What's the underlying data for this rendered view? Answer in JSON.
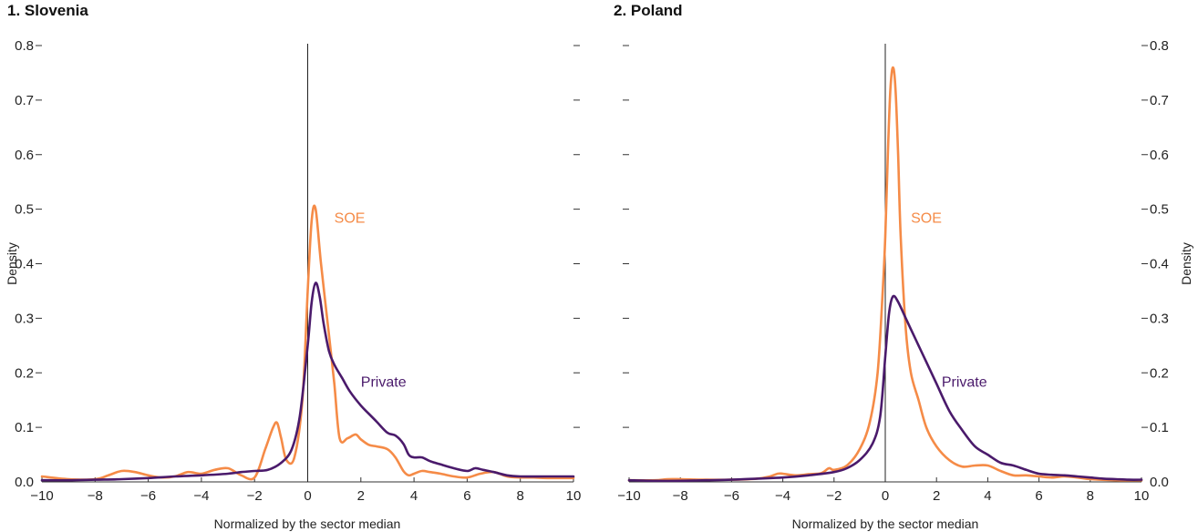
{
  "colors": {
    "soe": "#f58b47",
    "private": "#4a1a6b",
    "axis": "#333333"
  },
  "chart_data": [
    {
      "type": "line",
      "title": "1. Slovenia",
      "xlabel": "Normalized by the sector median",
      "ylabel": "Density",
      "ylabel_side": "left",
      "xlim": [
        -10,
        10
      ],
      "ylim": [
        0,
        0.8
      ],
      "xticks": [
        "−10",
        "−8",
        "−6",
        "−4",
        "−2",
        "0",
        "2",
        "4",
        "6",
        "8",
        "10"
      ],
      "yticks": [
        "0.0",
        "0.1",
        "0.2",
        "0.3",
        "0.4",
        "0.5",
        "0.6",
        "0.7",
        "0.8"
      ],
      "ytick_labels_side": "left",
      "vline_x": 0,
      "series": [
        {
          "name": "SOE",
          "color_key": "soe",
          "label_at": [
            1.0,
            0.5
          ],
          "x": [
            -10,
            -9,
            -8,
            -7.5,
            -7,
            -6.5,
            -6,
            -5.5,
            -5,
            -4.5,
            -4,
            -3.5,
            -3,
            -2.5,
            -2,
            -1.6,
            -1.3,
            -1.15,
            -1.0,
            -0.8,
            -0.5,
            -0.2,
            0,
            0.15,
            0.3,
            0.5,
            0.8,
            1.0,
            1.2,
            1.5,
            1.8,
            2.0,
            2.3,
            2.6,
            3.0,
            3.3,
            3.6,
            3.8,
            4.0,
            4.3,
            4.6,
            5.0,
            5.5,
            6.0,
            6.5,
            7.0,
            7.5,
            8.0,
            8.5,
            9.0,
            10
          ],
          "y": [
            0.01,
            0.005,
            0.005,
            0.012,
            0.02,
            0.018,
            0.012,
            0.008,
            0.01,
            0.018,
            0.015,
            0.022,
            0.025,
            0.012,
            0.008,
            0.06,
            0.1,
            0.108,
            0.08,
            0.04,
            0.045,
            0.15,
            0.35,
            0.48,
            0.5,
            0.4,
            0.27,
            0.18,
            0.08,
            0.08,
            0.087,
            0.078,
            0.068,
            0.065,
            0.06,
            0.045,
            0.02,
            0.012,
            0.015,
            0.02,
            0.018,
            0.015,
            0.01,
            0.008,
            0.015,
            0.018,
            0.01,
            0.008,
            0.008,
            0.007,
            0.007
          ]
        },
        {
          "name": "Private",
          "color_key": "private",
          "label_at": [
            2.0,
            0.2
          ],
          "x": [
            -10,
            -9,
            -8,
            -7,
            -6,
            -5,
            -4,
            -3,
            -2.5,
            -2,
            -1.5,
            -1.0,
            -0.6,
            -0.3,
            0,
            0.15,
            0.3,
            0.45,
            0.6,
            0.8,
            1.0,
            1.3,
            1.6,
            2.0,
            2.3,
            2.6,
            3.0,
            3.3,
            3.6,
            3.8,
            4.0,
            4.3,
            4.6,
            5.0,
            5.5,
            6.0,
            6.3,
            6.6,
            7.0,
            7.5,
            8.0,
            9.0,
            10
          ],
          "y": [
            0.003,
            0.003,
            0.004,
            0.005,
            0.007,
            0.01,
            0.012,
            0.015,
            0.018,
            0.02,
            0.022,
            0.035,
            0.06,
            0.12,
            0.25,
            0.33,
            0.365,
            0.34,
            0.29,
            0.24,
            0.215,
            0.19,
            0.165,
            0.14,
            0.125,
            0.11,
            0.09,
            0.085,
            0.07,
            0.05,
            0.045,
            0.045,
            0.038,
            0.032,
            0.025,
            0.02,
            0.025,
            0.022,
            0.018,
            0.012,
            0.01,
            0.01,
            0.01
          ]
        }
      ]
    },
    {
      "type": "line",
      "title": "2. Poland",
      "xlabel": "Normalized by the sector median",
      "ylabel": "Density",
      "ylabel_side": "right",
      "xlim": [
        -10,
        10
      ],
      "ylim": [
        0,
        0.8
      ],
      "xticks": [
        "−10",
        "−8",
        "−6",
        "−4",
        "−2",
        "0",
        "2",
        "4",
        "6",
        "8",
        "10"
      ],
      "yticks": [
        "0.0",
        "0.1",
        "0.2",
        "0.3",
        "0.4",
        "0.5",
        "0.6",
        "0.7",
        "0.8"
      ],
      "ytick_labels_side": "right",
      "vline_x": 0,
      "series": [
        {
          "name": "SOE",
          "color_key": "soe",
          "label_at": [
            1.0,
            0.5
          ],
          "x": [
            -10,
            -9,
            -8.5,
            -8,
            -7,
            -6,
            -5,
            -4.5,
            -4.2,
            -4.0,
            -3.5,
            -3.0,
            -2.5,
            -2.2,
            -2.0,
            -1.5,
            -1.0,
            -0.6,
            -0.3,
            -0.1,
            0,
            0.1,
            0.2,
            0.3,
            0.4,
            0.5,
            0.6,
            0.8,
            1.0,
            1.3,
            1.6,
            2.0,
            2.5,
            3.0,
            3.5,
            4.0,
            4.5,
            5.0,
            5.5,
            6.0,
            6.5,
            7.0,
            7.5,
            8.0,
            9.0,
            10
          ],
          "y": [
            0.003,
            0.003,
            0.005,
            0.005,
            0.004,
            0.004,
            0.006,
            0.01,
            0.015,
            0.015,
            0.012,
            0.014,
            0.016,
            0.025,
            0.022,
            0.03,
            0.06,
            0.11,
            0.2,
            0.35,
            0.45,
            0.6,
            0.72,
            0.76,
            0.72,
            0.6,
            0.45,
            0.28,
            0.2,
            0.15,
            0.1,
            0.065,
            0.04,
            0.028,
            0.03,
            0.03,
            0.02,
            0.012,
            0.012,
            0.01,
            0.008,
            0.01,
            0.008,
            0.005,
            0.003,
            0.003
          ]
        },
        {
          "name": "Private",
          "color_key": "private",
          "label_at": [
            2.2,
            0.2
          ],
          "x": [
            -10,
            -9,
            -8,
            -7,
            -6,
            -5,
            -4,
            -3,
            -2,
            -1.5,
            -1.0,
            -0.5,
            -0.2,
            0,
            0.15,
            0.3,
            0.5,
            0.8,
            1.0,
            1.3,
            1.6,
            2.0,
            2.5,
            3.0,
            3.5,
            4.0,
            4.5,
            5.0,
            5.5,
            6.0,
            6.5,
            7.0,
            7.5,
            8.0,
            8.5,
            9.0,
            9.5,
            10
          ],
          "y": [
            0.003,
            0.002,
            0.002,
            0.003,
            0.004,
            0.006,
            0.008,
            0.012,
            0.018,
            0.025,
            0.04,
            0.07,
            0.12,
            0.23,
            0.31,
            0.34,
            0.33,
            0.3,
            0.28,
            0.25,
            0.22,
            0.18,
            0.13,
            0.095,
            0.065,
            0.05,
            0.035,
            0.03,
            0.022,
            0.015,
            0.013,
            0.012,
            0.01,
            0.008,
            0.006,
            0.005,
            0.004,
            0.004
          ]
        }
      ]
    }
  ]
}
